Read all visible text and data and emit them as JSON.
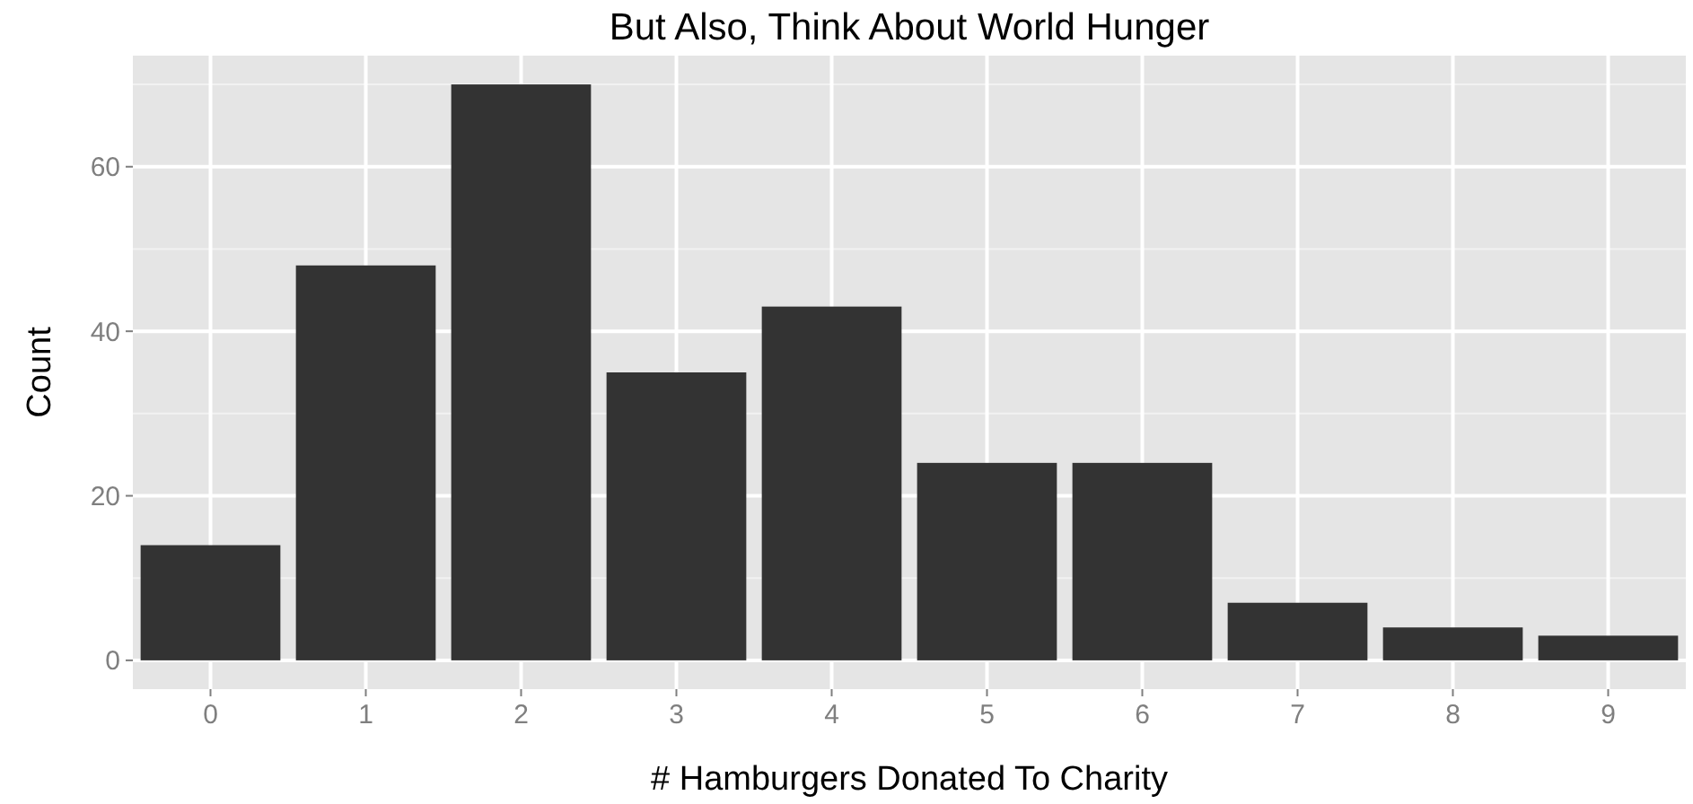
{
  "chart_data": {
    "type": "bar",
    "title": "But Also, Think About World Hunger",
    "xlabel": "# Hamburgers Donated To Charity",
    "ylabel": "Count",
    "categories": [
      "0",
      "1",
      "2",
      "3",
      "4",
      "5",
      "6",
      "7",
      "8",
      "9"
    ],
    "values": [
      14,
      48,
      70,
      35,
      43,
      24,
      24,
      7,
      4,
      3
    ],
    "color": "#333333",
    "ylim": [
      -3.5,
      73.5
    ],
    "yticks": [
      0,
      20,
      40,
      60
    ],
    "grid": true
  }
}
